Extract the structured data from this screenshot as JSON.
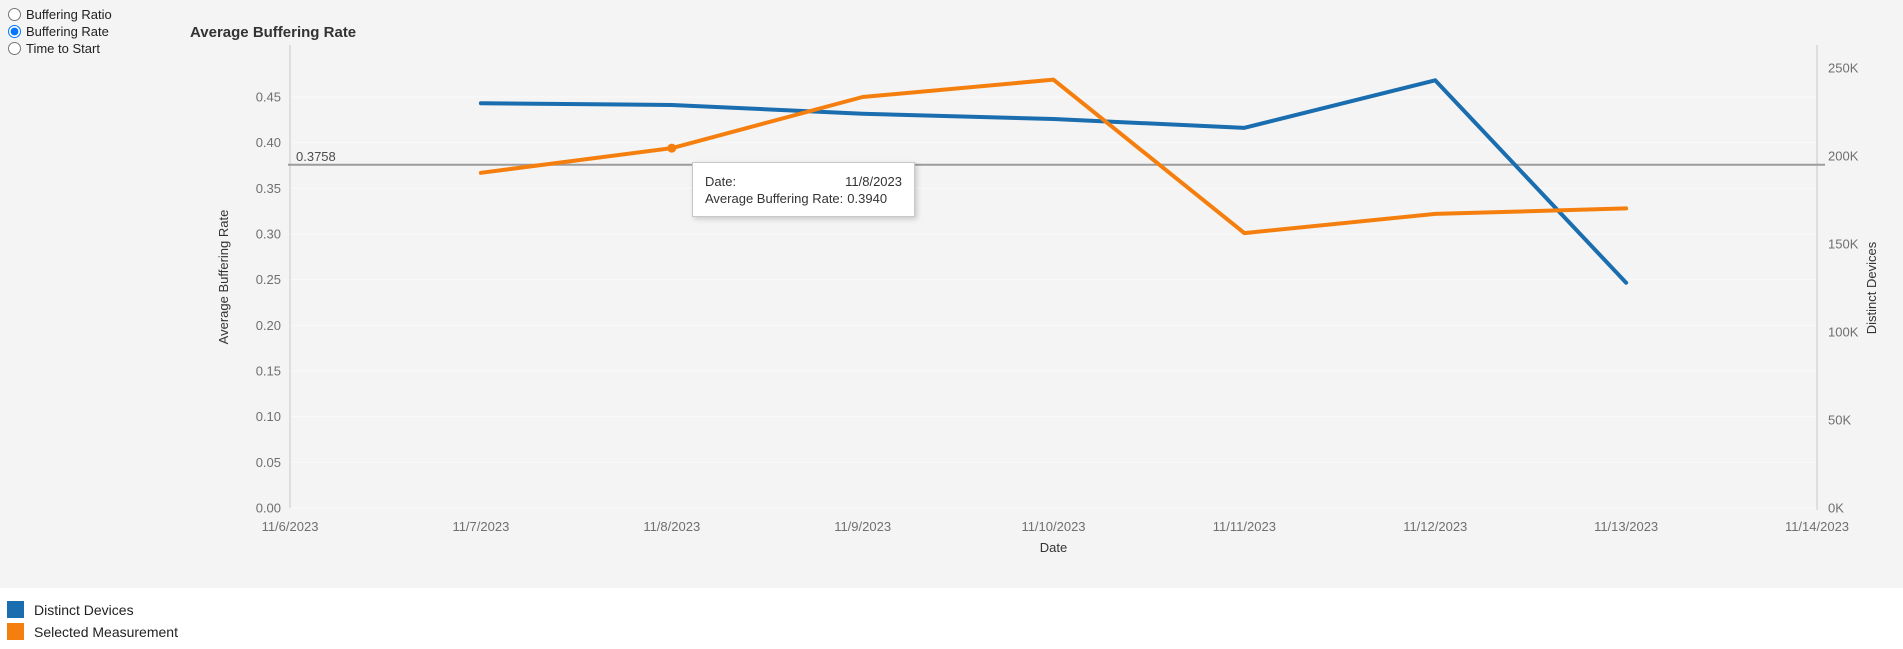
{
  "measurement_selector": {
    "options": [
      {
        "label": "Buffering Ratio",
        "selected": false
      },
      {
        "label": "Buffering Rate",
        "selected": true
      },
      {
        "label": "Time to Start",
        "selected": false
      }
    ]
  },
  "chart_data": {
    "type": "line",
    "title": "Average Buffering Rate",
    "grid": "horizontal",
    "legend_position": "bottom-left",
    "x_axis": {
      "title": "Date",
      "categories": [
        "11/6/2023",
        "11/7/2023",
        "11/8/2023",
        "11/9/2023",
        "11/10/2023",
        "11/11/2023",
        "11/12/2023",
        "11/13/2023",
        "11/14/2023"
      ]
    },
    "left_axis": {
      "title": "Average Buffering Rate",
      "min": 0,
      "tick_values": [
        0,
        0.05,
        0.1,
        0.15,
        0.2,
        0.25,
        0.3,
        0.35,
        0.4,
        0.45
      ],
      "tick_labels": [
        "0.00",
        "0.05",
        "0.10",
        "0.15",
        "0.20",
        "0.25",
        "0.30",
        "0.35",
        "0.40",
        "0.45"
      ]
    },
    "right_axis": {
      "title": "Distinct Devices",
      "min": 0,
      "tick_values": [
        0,
        50000,
        100000,
        150000,
        200000,
        250000
      ],
      "tick_labels": [
        "0K",
        "50K",
        "100K",
        "150K",
        "200K",
        "250K"
      ]
    },
    "reference_line": {
      "axis": "left",
      "value": 0.3758,
      "label": "0.3758"
    },
    "series": [
      {
        "name": "Distinct Devices",
        "axis": "right",
        "color": "#1a6dae",
        "x": [
          "11/7/2023",
          "11/8/2023",
          "11/9/2023",
          "11/10/2023",
          "11/11/2023",
          "11/12/2023",
          "11/13/2023"
        ],
        "values": [
          230000,
          229000,
          224000,
          221000,
          216000,
          243000,
          128000
        ]
      },
      {
        "name": "Selected Measurement",
        "axis": "left",
        "color": "#f57f0e",
        "x": [
          "11/7/2023",
          "11/8/2023",
          "11/9/2023",
          "11/10/2023",
          "11/11/2023",
          "11/12/2023",
          "11/13/2023"
        ],
        "values": [
          0.367,
          0.394,
          0.45,
          0.469,
          0.301,
          0.322,
          0.328
        ]
      }
    ],
    "highlighted_point": {
      "series": "Selected Measurement",
      "x": "11/8/2023",
      "value": 0.394
    }
  },
  "tooltip": {
    "rows": [
      {
        "label": "Date:",
        "value": "11/8/2023"
      },
      {
        "label": "Average Buffering Rate:",
        "value": "0.3940"
      }
    ]
  },
  "legend": {
    "items": [
      {
        "label": "Distinct Devices",
        "color": "#1a6dae"
      },
      {
        "label": "Selected Measurement",
        "color": "#f57f0e"
      }
    ]
  },
  "colors": {
    "panel_background": "#f4f4f4",
    "page_background": "#ffffff",
    "gridline": "#fafafa",
    "axis_line": "#c9c9c9",
    "reference_line": "#9c9c9c",
    "tick_text": "#6f6f6f",
    "axis_title_text": "#333333",
    "title_text": "#333333",
    "tooltip_text": "#333333"
  }
}
